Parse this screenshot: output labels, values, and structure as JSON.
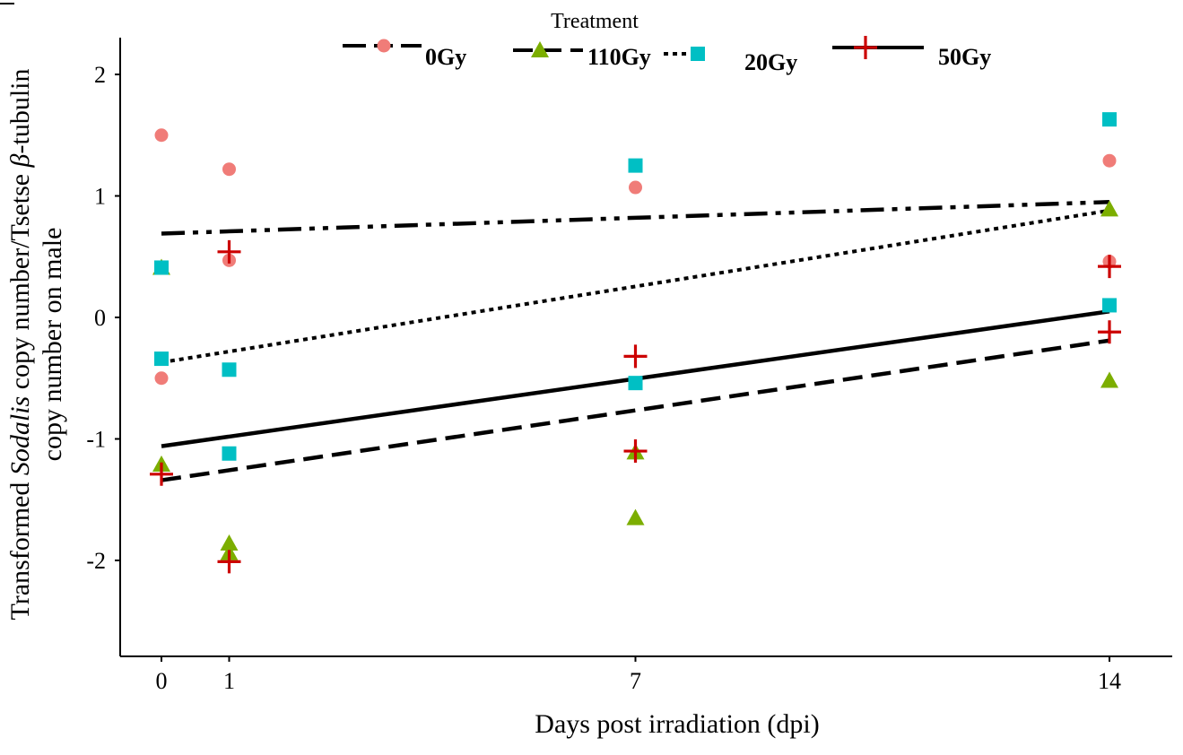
{
  "chart_data": {
    "type": "scatter",
    "legend": {
      "title": "Treatment",
      "placement": "top"
    },
    "xlabel": "Days post irradiation (dpi)",
    "ylabel": {
      "line1_parts": [
        "Transformed ",
        "Sodalis",
        " copy number/Tsetse ",
        "β",
        "-tubulin"
      ],
      "line2": "copy number on male"
    },
    "x_ticks": [
      0,
      1,
      7,
      14
    ],
    "y_ticks": [
      -2,
      -1,
      0,
      1,
      2
    ],
    "xlim": [
      -0.6,
      14.8
    ],
    "ylim": [
      -2.75,
      2.25
    ],
    "grid": false,
    "series": [
      {
        "name": "0Gy",
        "marker": "circle",
        "color": "#f07c78",
        "line_dash": "dash-dot-dot",
        "trend": [
          [
            0,
            0.69
          ],
          [
            14,
            0.95
          ]
        ],
        "points": [
          [
            0,
            1.5
          ],
          [
            0,
            -0.5
          ],
          [
            1,
            1.22
          ],
          [
            1,
            0.47
          ],
          [
            7,
            1.07
          ],
          [
            14,
            1.29
          ],
          [
            14,
            0.46
          ]
        ]
      },
      {
        "name": "110Gy",
        "marker": "triangle",
        "color": "#7cae00",
        "line_dash": "dashed",
        "trend": [
          [
            0,
            -1.34
          ],
          [
            14,
            -0.19
          ]
        ],
        "points": [
          [
            0,
            0.41
          ],
          [
            0,
            -1.21
          ],
          [
            1,
            -1.86
          ],
          [
            1,
            -1.94
          ],
          [
            7,
            -1.11
          ],
          [
            7,
            -1.65
          ],
          [
            14,
            0.89
          ],
          [
            14,
            -0.52
          ]
        ]
      },
      {
        "name": "20Gy",
        "marker": "square",
        "color": "#00bfc4",
        "line_dash": "dotted",
        "trend": [
          [
            0,
            -0.37
          ],
          [
            14,
            0.88
          ]
        ],
        "points": [
          [
            0,
            0.41
          ],
          [
            0,
            -0.34
          ],
          [
            1,
            -0.43
          ],
          [
            1,
            -1.12
          ],
          [
            7,
            1.25
          ],
          [
            7,
            -0.54
          ],
          [
            14,
            1.63
          ],
          [
            14,
            0.1
          ]
        ]
      },
      {
        "name": "50Gy",
        "marker": "plus",
        "color": "#cc0000",
        "line_dash": "solid",
        "trend": [
          [
            0,
            -1.06
          ],
          [
            14,
            0.05
          ]
        ],
        "points": [
          [
            0,
            -1.29
          ],
          [
            1,
            0.54
          ],
          [
            1,
            -2.01
          ],
          [
            7,
            -0.32
          ],
          [
            7,
            -1.1
          ],
          [
            14,
            0.42
          ],
          [
            14,
            -0.12
          ]
        ]
      }
    ]
  }
}
